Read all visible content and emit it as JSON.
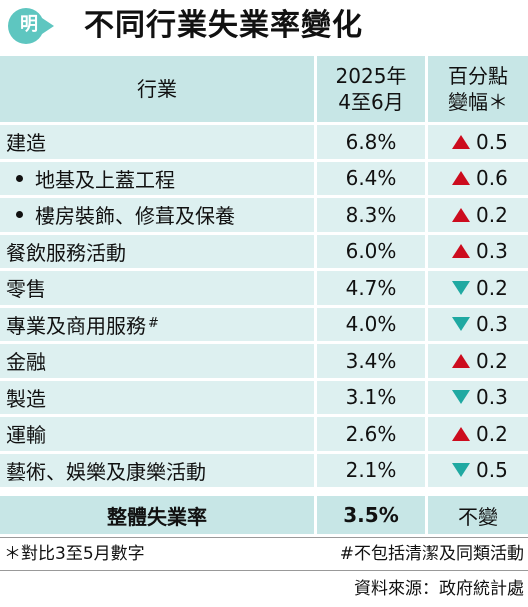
{
  "title": "不同行業失業率變化",
  "logo": {
    "text": "明",
    "icon": "ming-pao-logo-icon",
    "color": "#5ec6c0"
  },
  "colors": {
    "up": "#cc0c1e",
    "down": "#1fa9a2",
    "header_bg": "#c7e6e6",
    "row_bg": "#ddf0f0"
  },
  "header": {
    "industry": "行業",
    "rate_line1": "2025年",
    "rate_line2": "4至6月",
    "change_line1": "百分點",
    "change_line2": "變幅＊"
  },
  "rows": [
    {
      "industry": "建造",
      "rate": "6.8%",
      "direction": "up",
      "change": "0.5"
    },
    {
      "industry": "地基及上蓋工程",
      "rate": "6.4%",
      "direction": "up",
      "change": "0.6",
      "bullet": true
    },
    {
      "industry": "樓房裝飾、修葺及保養",
      "rate": "8.3%",
      "direction": "up",
      "change": "0.2",
      "bullet": true
    },
    {
      "industry": "餐飲服務活動",
      "rate": "6.0%",
      "direction": "up",
      "change": "0.3"
    },
    {
      "industry": "零售",
      "rate": "4.7%",
      "direction": "down",
      "change": "0.2"
    },
    {
      "industry": "專業及商用服務",
      "sup": "#",
      "rate": "4.0%",
      "direction": "down",
      "change": "0.3"
    },
    {
      "industry": "金融",
      "rate": "3.4%",
      "direction": "up",
      "change": "0.2"
    },
    {
      "industry": "製造",
      "rate": "3.1%",
      "direction": "down",
      "change": "0.3"
    },
    {
      "industry": "運輸",
      "rate": "2.6%",
      "direction": "up",
      "change": "0.2"
    },
    {
      "industry": "藝術、娛樂及康樂活動",
      "rate": "2.1%",
      "direction": "down",
      "change": "0.5"
    }
  ],
  "total": {
    "label": "整體失業率",
    "rate": "3.5%",
    "change": "不變"
  },
  "notes": {
    "left": "＊對比3至5月數字",
    "right": "#不包括清潔及同類活動"
  },
  "source": "資料來源：政府統計處",
  "chart_data": {
    "type": "table",
    "title": "不同行業失業率變化",
    "columns": [
      "行業",
      "2025年 4至6月",
      "百分點 變幅＊"
    ],
    "rows": [
      [
        "建造",
        6.8,
        0.5
      ],
      [
        "地基及上蓋工程",
        6.4,
        0.6
      ],
      [
        "樓房裝飾、修葺及保養",
        8.3,
        0.2
      ],
      [
        "餐飲服務活動",
        6.0,
        0.3
      ],
      [
        "零售",
        4.7,
        -0.2
      ],
      [
        "專業及商用服務#",
        4.0,
        -0.3
      ],
      [
        "金融",
        3.4,
        0.2
      ],
      [
        "製造",
        3.1,
        -0.3
      ],
      [
        "運輸",
        2.6,
        0.2
      ],
      [
        "藝術、娛樂及康樂活動",
        2.1,
        -0.5
      ],
      [
        "整體失業率",
        3.5,
        0
      ]
    ]
  }
}
